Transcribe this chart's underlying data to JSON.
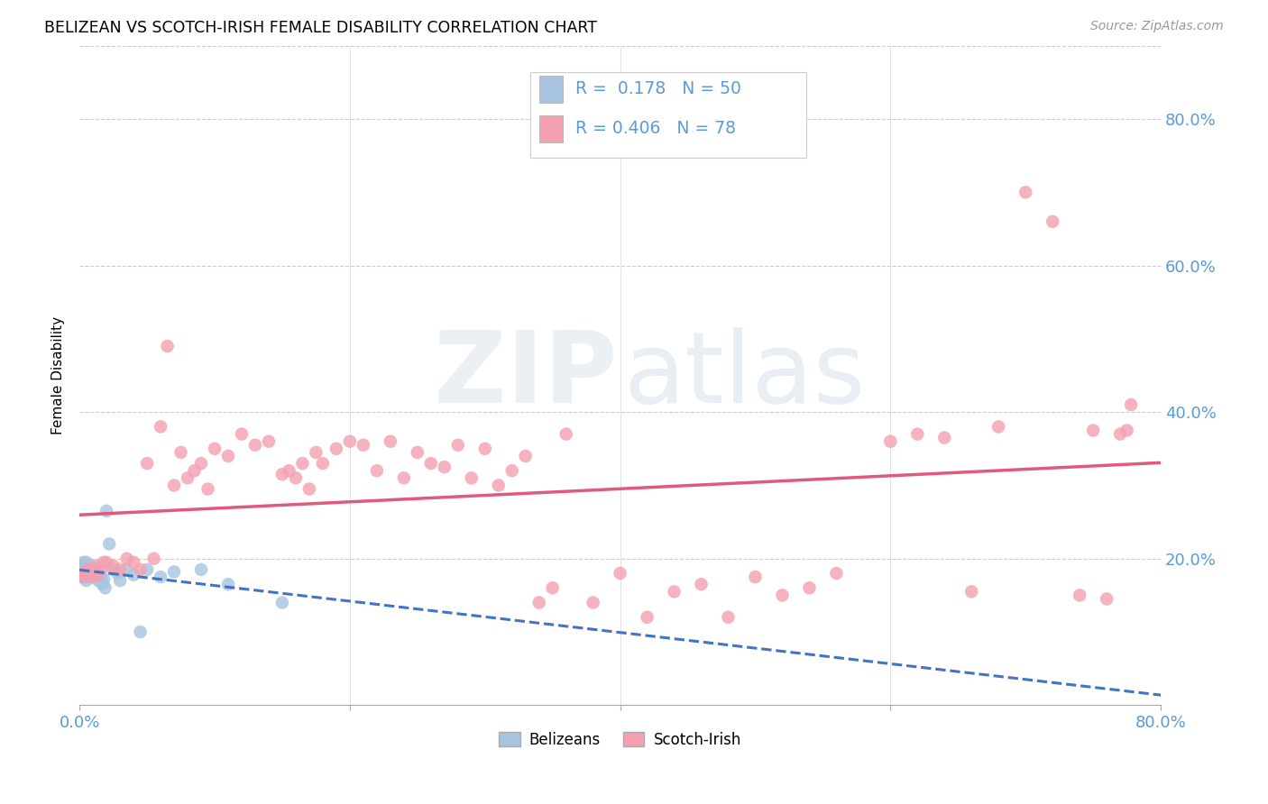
{
  "title": "BELIZEAN VS SCOTCH-IRISH FEMALE DISABILITY CORRELATION CHART",
  "source": "Source: ZipAtlas.com",
  "tick_color": "#5b9bd5",
  "ylabel": "Female Disability",
  "x_range": [
    0.0,
    0.8
  ],
  "y_range": [
    0.0,
    0.9
  ],
  "belizean_color": "#a8c4e0",
  "scotch_irish_color": "#f4a0b0",
  "belizean_line_color": "#4472c4",
  "scotch_irish_line_color": "#e05a7a",
  "belizean_R": 0.178,
  "belizean_N": 50,
  "scotch_irish_R": 0.406,
  "scotch_irish_N": 78,
  "bel_x": [
    0.001,
    0.002,
    0.002,
    0.003,
    0.003,
    0.003,
    0.004,
    0.004,
    0.004,
    0.004,
    0.005,
    0.005,
    0.005,
    0.005,
    0.005,
    0.006,
    0.006,
    0.006,
    0.007,
    0.007,
    0.007,
    0.008,
    0.008,
    0.009,
    0.009,
    0.01,
    0.01,
    0.011,
    0.012,
    0.013,
    0.014,
    0.015,
    0.016,
    0.017,
    0.018,
    0.019,
    0.02,
    0.022,
    0.025,
    0.028,
    0.03,
    0.035,
    0.04,
    0.045,
    0.05,
    0.06,
    0.07,
    0.09,
    0.11,
    0.15
  ],
  "bel_y": [
    0.185,
    0.19,
    0.175,
    0.18,
    0.185,
    0.195,
    0.175,
    0.18,
    0.185,
    0.19,
    0.17,
    0.175,
    0.18,
    0.185,
    0.195,
    0.175,
    0.183,
    0.19,
    0.178,
    0.185,
    0.192,
    0.176,
    0.185,
    0.18,
    0.188,
    0.175,
    0.183,
    0.178,
    0.182,
    0.176,
    0.17,
    0.178,
    0.174,
    0.165,
    0.172,
    0.16,
    0.265,
    0.22,
    0.185,
    0.18,
    0.17,
    0.185,
    0.178,
    0.1,
    0.185,
    0.175,
    0.182,
    0.185,
    0.165,
    0.14
  ],
  "si_x": [
    0.002,
    0.004,
    0.006,
    0.008,
    0.01,
    0.012,
    0.014,
    0.016,
    0.018,
    0.02,
    0.025,
    0.03,
    0.035,
    0.04,
    0.045,
    0.05,
    0.055,
    0.06,
    0.065,
    0.07,
    0.075,
    0.08,
    0.085,
    0.09,
    0.095,
    0.1,
    0.11,
    0.12,
    0.13,
    0.14,
    0.15,
    0.155,
    0.16,
    0.165,
    0.17,
    0.175,
    0.18,
    0.19,
    0.2,
    0.21,
    0.22,
    0.23,
    0.24,
    0.25,
    0.26,
    0.27,
    0.28,
    0.29,
    0.3,
    0.31,
    0.32,
    0.33,
    0.34,
    0.35,
    0.36,
    0.38,
    0.4,
    0.42,
    0.44,
    0.46,
    0.48,
    0.5,
    0.52,
    0.54,
    0.56,
    0.6,
    0.62,
    0.64,
    0.66,
    0.68,
    0.7,
    0.72,
    0.74,
    0.75,
    0.76,
    0.77,
    0.775,
    0.778
  ],
  "si_y": [
    0.175,
    0.18,
    0.185,
    0.185,
    0.175,
    0.19,
    0.178,
    0.185,
    0.195,
    0.195,
    0.19,
    0.185,
    0.2,
    0.195,
    0.185,
    0.33,
    0.2,
    0.38,
    0.49,
    0.3,
    0.345,
    0.31,
    0.32,
    0.33,
    0.295,
    0.35,
    0.34,
    0.37,
    0.355,
    0.36,
    0.315,
    0.32,
    0.31,
    0.33,
    0.295,
    0.345,
    0.33,
    0.35,
    0.36,
    0.355,
    0.32,
    0.36,
    0.31,
    0.345,
    0.33,
    0.325,
    0.355,
    0.31,
    0.35,
    0.3,
    0.32,
    0.34,
    0.14,
    0.16,
    0.37,
    0.14,
    0.18,
    0.12,
    0.155,
    0.165,
    0.12,
    0.175,
    0.15,
    0.16,
    0.18,
    0.36,
    0.37,
    0.365,
    0.155,
    0.38,
    0.7,
    0.66,
    0.15,
    0.375,
    0.145,
    0.37,
    0.375,
    0.41
  ]
}
